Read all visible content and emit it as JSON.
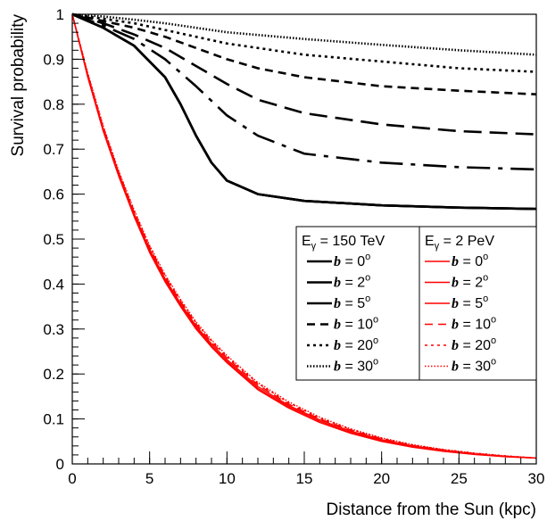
{
  "chart_data": {
    "type": "line",
    "title": "",
    "xlabel": "Distance from the Sun (kpc)",
    "ylabel": "Survival probability",
    "xlim": [
      0,
      30
    ],
    "ylim": [
      0,
      1
    ],
    "x_ticks": [
      "0",
      "5",
      "10",
      "15",
      "20",
      "25",
      "30"
    ],
    "y_ticks": [
      "0",
      "0.1",
      "0.2",
      "0.3",
      "0.4",
      "0.5",
      "0.6",
      "0.7",
      "0.8",
      "0.9",
      "1"
    ],
    "grid": false,
    "legend_placement": "center-right",
    "legend": {
      "headers": [
        {
          "prefix": "E",
          "sub": "γ",
          "suffix": " = 150 TeV"
        },
        {
          "prefix": "E",
          "sub": "γ",
          "suffix": " = 2 PeV"
        }
      ],
      "b_symbol": "b",
      "equals": " = ",
      "degree": "o"
    },
    "series_groups": [
      {
        "color": "#000000",
        "series": [
          {
            "b_value": "0",
            "dash": "solid",
            "x": [
              0,
              2,
              4,
              6,
              7,
              8,
              9,
              10,
              12,
              15,
              20,
              25,
              30
            ],
            "y": [
              1.0,
              0.97,
              0.93,
              0.86,
              0.8,
              0.73,
              0.67,
              0.63,
              0.6,
              0.585,
              0.575,
              0.57,
              0.567
            ]
          },
          {
            "b_value": "2",
            "dash": "solid",
            "x": [
              0,
              2,
              4,
              6,
              7,
              8,
              9,
              10,
              12,
              15,
              20,
              25,
              30
            ],
            "y": [
              1.0,
              0.97,
              0.93,
              0.86,
              0.8,
              0.73,
              0.67,
              0.63,
              0.6,
              0.585,
              0.575,
              0.57,
              0.567
            ]
          },
          {
            "b_value": "5",
            "dash": "solid",
            "x": [
              0,
              2,
              4,
              6,
              7,
              8,
              9,
              10,
              12,
              15,
              20,
              25,
              30
            ],
            "y": [
              1.0,
              0.97,
              0.93,
              0.86,
              0.8,
              0.73,
              0.67,
              0.63,
              0.6,
              0.585,
              0.575,
              0.57,
              0.567
            ]
          },
          {
            "b_value": "10",
            "dash": "longdashdot",
            "x": [
              0,
              2,
              4,
              6,
              8,
              10,
              12,
              15,
              20,
              25,
              30
            ],
            "y": [
              1.0,
              0.975,
              0.945,
              0.9,
              0.84,
              0.775,
              0.73,
              0.69,
              0.67,
              0.66,
              0.655
            ]
          },
          {
            "b_value": "20",
            "dash": "longdash",
            "x": [
              0,
              2,
              4,
              6,
              8,
              10,
              12,
              15,
              20,
              25,
              30
            ],
            "y": [
              1.0,
              0.98,
              0.955,
              0.925,
              0.885,
              0.845,
              0.81,
              0.78,
              0.755,
              0.74,
              0.733
            ]
          },
          {
            "b_value": "30",
            "dash": "dash",
            "x": [
              0,
              2,
              4,
              6,
              8,
              10,
              12,
              15,
              20,
              25,
              30
            ],
            "y": [
              1.0,
              0.985,
              0.97,
              0.95,
              0.925,
              0.9,
              0.88,
              0.86,
              0.84,
              0.83,
              0.822
            ]
          },
          {
            "b_value": "",
            "dash": "dot",
            "x": [
              0,
              2,
              4,
              6,
              8,
              10,
              15,
              20,
              25,
              30
            ],
            "y": [
              1.0,
              0.99,
              0.98,
              0.965,
              0.95,
              0.935,
              0.91,
              0.895,
              0.88,
              0.872
            ]
          },
          {
            "b_value": "",
            "dash": "finedot",
            "x": [
              0,
              2,
              4,
              6,
              8,
              10,
              15,
              20,
              25,
              30
            ],
            "y": [
              1.0,
              0.995,
              0.988,
              0.98,
              0.97,
              0.96,
              0.945,
              0.932,
              0.92,
              0.91
            ]
          }
        ]
      },
      {
        "color": "#ff0000",
        "series": [
          {
            "b_value": "0",
            "dash": "solid",
            "x": [
              0,
              1,
              2,
              3,
              4,
              5,
              6,
              7,
              8,
              9,
              10,
              12,
              14,
              16,
              18,
              20,
              22,
              24,
              26,
              28,
              30
            ],
            "y": [
              1.0,
              0.86,
              0.74,
              0.64,
              0.55,
              0.47,
              0.405,
              0.35,
              0.3,
              0.26,
              0.225,
              0.165,
              0.124,
              0.092,
              0.068,
              0.05,
              0.037,
              0.028,
              0.021,
              0.016,
              0.013
            ]
          },
          {
            "b_value": "2",
            "dash": "solid",
            "x": [
              0,
              1,
              2,
              3,
              4,
              5,
              6,
              7,
              8,
              9,
              10,
              12,
              14,
              16,
              18,
              20,
              22,
              24,
              26,
              28,
              30
            ],
            "y": [
              1.0,
              0.862,
              0.742,
              0.642,
              0.553,
              0.473,
              0.408,
              0.353,
              0.303,
              0.263,
              0.228,
              0.168,
              0.127,
              0.095,
              0.07,
              0.052,
              0.039,
              0.029,
              0.022,
              0.016,
              0.013
            ]
          },
          {
            "b_value": "5",
            "dash": "solid",
            "x": [
              0,
              1,
              2,
              3,
              4,
              5,
              6,
              7,
              8,
              9,
              10,
              12,
              14,
              16,
              18,
              20,
              22,
              24,
              26,
              28,
              30
            ],
            "y": [
              1.0,
              0.864,
              0.745,
              0.645,
              0.556,
              0.477,
              0.412,
              0.357,
              0.307,
              0.267,
              0.232,
              0.172,
              0.13,
              0.098,
              0.073,
              0.054,
              0.04,
              0.03,
              0.022,
              0.017,
              0.013
            ]
          },
          {
            "b_value": "10",
            "dash": "dash",
            "x": [
              0,
              1,
              2,
              3,
              4,
              5,
              6,
              7,
              8,
              9,
              10,
              12,
              14,
              16,
              18,
              20,
              22,
              24,
              26,
              28,
              30
            ],
            "y": [
              1.0,
              0.866,
              0.748,
              0.648,
              0.56,
              0.481,
              0.416,
              0.361,
              0.311,
              0.271,
              0.236,
              0.176,
              0.133,
              0.1,
              0.075,
              0.056,
              0.041,
              0.031,
              0.023,
              0.017,
              0.013
            ]
          },
          {
            "b_value": "20",
            "dash": "dot",
            "x": [
              0,
              1,
              2,
              3,
              4,
              5,
              6,
              7,
              8,
              9,
              10,
              12,
              14,
              16,
              18,
              20,
              22,
              24,
              26,
              28,
              30
            ],
            "y": [
              1.0,
              0.868,
              0.75,
              0.65,
              0.563,
              0.484,
              0.419,
              0.364,
              0.314,
              0.274,
              0.239,
              0.179,
              0.136,
              0.102,
              0.077,
              0.057,
              0.042,
              0.032,
              0.024,
              0.018,
              0.013
            ]
          },
          {
            "b_value": "30",
            "dash": "finedot",
            "x": [
              0,
              1,
              2,
              3,
              4,
              5,
              6,
              7,
              8,
              9,
              10,
              12,
              14,
              16,
              18,
              20,
              22,
              24,
              26,
              28,
              30
            ],
            "y": [
              1.0,
              0.87,
              0.752,
              0.652,
              0.565,
              0.486,
              0.421,
              0.366,
              0.316,
              0.276,
              0.241,
              0.181,
              0.138,
              0.104,
              0.078,
              0.058,
              0.043,
              0.032,
              0.024,
              0.018,
              0.013
            ]
          }
        ]
      }
    ]
  }
}
